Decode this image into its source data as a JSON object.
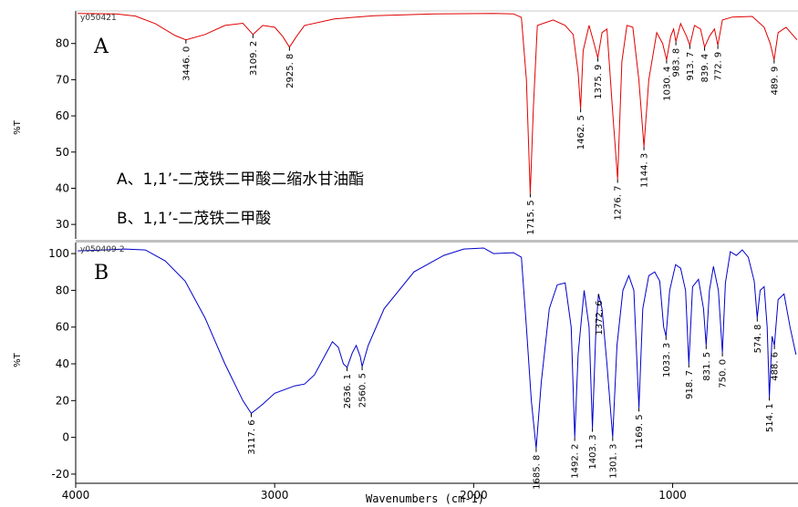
{
  "chart_data": [
    {
      "type": "line",
      "panel_label": "A",
      "spectrum_id": "y050421",
      "color": "#e00000",
      "ylabel": "%T",
      "xlabel": "Wavenumbers (cm-1)",
      "xlim": [
        4000,
        370
      ],
      "ylim": [
        26,
        89
      ],
      "yticks": [
        30,
        40,
        50,
        60,
        70,
        80
      ],
      "points": [
        [
          3990,
          88.3
        ],
        [
          3800,
          88.2
        ],
        [
          3700,
          87.6
        ],
        [
          3600,
          85.5
        ],
        [
          3500,
          82.2
        ],
        [
          3446.0,
          81.0
        ],
        [
          3350,
          82.5
        ],
        [
          3250,
          85.0
        ],
        [
          3160,
          85.6
        ],
        [
          3109.2,
          82.5
        ],
        [
          3060,
          85.0
        ],
        [
          3000,
          84.5
        ],
        [
          2960,
          82.0
        ],
        [
          2925.8,
          79.0
        ],
        [
          2890,
          82.0
        ],
        [
          2850,
          85.0
        ],
        [
          2700,
          86.8
        ],
        [
          2500,
          87.7
        ],
        [
          2200,
          88.2
        ],
        [
          1900,
          88.3
        ],
        [
          1800,
          88.2
        ],
        [
          1760,
          87.2
        ],
        [
          1735,
          70.0
        ],
        [
          1715.5,
          38.5
        ],
        [
          1700,
          62.0
        ],
        [
          1680,
          85.0
        ],
        [
          1600,
          86.5
        ],
        [
          1540,
          85.0
        ],
        [
          1500,
          82.5
        ],
        [
          1475,
          72.0
        ],
        [
          1462.5,
          62.0
        ],
        [
          1450,
          78.0
        ],
        [
          1420,
          85.0
        ],
        [
          1395,
          80.0
        ],
        [
          1375.9,
          76.0
        ],
        [
          1355,
          83.0
        ],
        [
          1330,
          84.0
        ],
        [
          1300,
          60.0
        ],
        [
          1276.7,
          42.5
        ],
        [
          1255,
          75.0
        ],
        [
          1230,
          85.0
        ],
        [
          1200,
          84.5
        ],
        [
          1170,
          70.0
        ],
        [
          1144.3,
          51.5
        ],
        [
          1120,
          70.0
        ],
        [
          1080,
          83.0
        ],
        [
          1050,
          80.0
        ],
        [
          1030.4,
          75.5
        ],
        [
          1010,
          82.0
        ],
        [
          995,
          84.0
        ],
        [
          983.8,
          80.5
        ],
        [
          960,
          85.5
        ],
        [
          930,
          82.0
        ],
        [
          913.7,
          79.5
        ],
        [
          890,
          85.0
        ],
        [
          860,
          84.0
        ],
        [
          839.4,
          79.0
        ],
        [
          815,
          82.0
        ],
        [
          790,
          84.0
        ],
        [
          772.9,
          79.5
        ],
        [
          750,
          86.5
        ],
        [
          700,
          87.3
        ],
        [
          600,
          87.5
        ],
        [
          540,
          84.5
        ],
        [
          510,
          80.0
        ],
        [
          489.9,
          75.5
        ],
        [
          470,
          83.0
        ],
        [
          430,
          84.5
        ],
        [
          375,
          81.0
        ]
      ],
      "peak_labels": [
        {
          "x": 3446.0,
          "y": 81.0,
          "label": "3446. 0"
        },
        {
          "x": 3109.2,
          "y": 82.5,
          "label": "3109. 2"
        },
        {
          "x": 2925.8,
          "y": 79.0,
          "label": "2925. 8"
        },
        {
          "x": 1715.5,
          "y": 38.5,
          "label": "1715. 5"
        },
        {
          "x": 1462.5,
          "y": 62.0,
          "label": "1462. 5"
        },
        {
          "x": 1375.9,
          "y": 76.0,
          "label": "1375. 9"
        },
        {
          "x": 1276.7,
          "y": 42.5,
          "label": "1276. 7"
        },
        {
          "x": 1144.3,
          "y": 51.5,
          "label": "1144. 3"
        },
        {
          "x": 1030.4,
          "y": 75.5,
          "label": "1030. 4"
        },
        {
          "x": 983.8,
          "y": 80.5,
          "label": "983. 8"
        },
        {
          "x": 913.7,
          "y": 79.5,
          "label": "913. 7"
        },
        {
          "x": 839.4,
          "y": 79.0,
          "label": "839. 4"
        },
        {
          "x": 772.9,
          "y": 79.5,
          "label": "772. 9"
        },
        {
          "x": 489.9,
          "y": 75.5,
          "label": "489. 9"
        }
      ]
    },
    {
      "type": "line",
      "panel_label": "B",
      "spectrum_id": "y050409-2",
      "color": "#0000cc",
      "ylabel": "%T",
      "xlabel": "Wavenumbers (cm-1)",
      "xlim": [
        4000,
        370
      ],
      "ylim": [
        -25,
        106
      ],
      "yticks": [
        -20,
        0,
        20,
        40,
        60,
        80,
        100
      ],
      "points": [
        [
          3990,
          101.5
        ],
        [
          3900,
          101.8
        ],
        [
          3750,
          102.5
        ],
        [
          3650,
          102.0
        ],
        [
          3550,
          96.0
        ],
        [
          3450,
          85.0
        ],
        [
          3350,
          65.0
        ],
        [
          3250,
          40.0
        ],
        [
          3160,
          20.0
        ],
        [
          3117.6,
          13.0
        ],
        [
          3060,
          18.0
        ],
        [
          3000,
          24.0
        ],
        [
          2900,
          28.0
        ],
        [
          2850,
          29.0
        ],
        [
          2800,
          34.0
        ],
        [
          2740,
          46.0
        ],
        [
          2710,
          52.0
        ],
        [
          2680,
          49.0
        ],
        [
          2655,
          40.0
        ],
        [
          2636.1,
          38.0
        ],
        [
          2610,
          46.0
        ],
        [
          2590,
          50.0
        ],
        [
          2570,
          44.0
        ],
        [
          2560.5,
          38.5
        ],
        [
          2530,
          50.0
        ],
        [
          2450,
          70.0
        ],
        [
          2300,
          90.0
        ],
        [
          2150,
          99.0
        ],
        [
          2050,
          102.5
        ],
        [
          1950,
          103.0
        ],
        [
          1900,
          100.0
        ],
        [
          1800,
          100.5
        ],
        [
          1760,
          98.0
        ],
        [
          1735,
          60.0
        ],
        [
          1710,
          20.0
        ],
        [
          1685.8,
          -6.0
        ],
        [
          1660,
          30.0
        ],
        [
          1620,
          70.0
        ],
        [
          1580,
          83.0
        ],
        [
          1540,
          84.0
        ],
        [
          1510,
          60.0
        ],
        [
          1492.2,
          0.0
        ],
        [
          1475,
          45.0
        ],
        [
          1445,
          80.0
        ],
        [
          1420,
          60.0
        ],
        [
          1403.3,
          5.0
        ],
        [
          1385,
          60.0
        ],
        [
          1372.6,
          78.0
        ],
        [
          1355,
          70.0
        ],
        [
          1330,
          40.0
        ],
        [
          1301.3,
          0.0
        ],
        [
          1280,
          50.0
        ],
        [
          1250,
          80.0
        ],
        [
          1220,
          88.0
        ],
        [
          1195,
          80.0
        ],
        [
          1169.5,
          16.0
        ],
        [
          1150,
          70.0
        ],
        [
          1120,
          88.0
        ],
        [
          1090,
          90.0
        ],
        [
          1065,
          85.0
        ],
        [
          1045,
          60.0
        ],
        [
          1033.3,
          55.0
        ],
        [
          1015,
          80.0
        ],
        [
          985,
          94.0
        ],
        [
          960,
          92.0
        ],
        [
          935,
          80.0
        ],
        [
          918.7,
          40.0
        ],
        [
          900,
          82.0
        ],
        [
          870,
          86.0
        ],
        [
          845,
          70.0
        ],
        [
          831.5,
          50.0
        ],
        [
          815,
          80.0
        ],
        [
          795,
          93.0
        ],
        [
          770,
          80.0
        ],
        [
          750.0,
          46.0
        ],
        [
          735,
          84.0
        ],
        [
          710,
          101.0
        ],
        [
          680,
          99.0
        ],
        [
          650,
          102.0
        ],
        [
          620,
          98.0
        ],
        [
          590,
          85.0
        ],
        [
          574.8,
          65.0
        ],
        [
          560,
          80.0
        ],
        [
          540,
          82.0
        ],
        [
          525,
          60.0
        ],
        [
          514.1,
          22.0
        ],
        [
          500,
          55.0
        ],
        [
          488.6,
          50.0
        ],
        [
          470,
          75.0
        ],
        [
          440,
          78.0
        ],
        [
          410,
          60.0
        ],
        [
          380,
          45.0
        ]
      ],
      "peak_labels": [
        {
          "x": 3117.6,
          "y": 13.0,
          "label": "3117. 6"
        },
        {
          "x": 2636.1,
          "y": 38.0,
          "label": "2636. 1"
        },
        {
          "x": 2560.5,
          "y": 38.5,
          "label": "2560. 5"
        },
        {
          "x": 1685.8,
          "y": -6.0,
          "label": "1685. 8"
        },
        {
          "x": 1492.2,
          "y": 0.0,
          "label": "1492. 2"
        },
        {
          "x": 1403.3,
          "y": 5.0,
          "label": "1403. 3"
        },
        {
          "x": 1372.6,
          "y": 78.0,
          "label": "1372. 6"
        },
        {
          "x": 1301.3,
          "y": 0.0,
          "label": "1301. 3"
        },
        {
          "x": 1169.5,
          "y": 16.0,
          "label": "1169. 5"
        },
        {
          "x": 1033.3,
          "y": 55.0,
          "label": "1033. 3"
        },
        {
          "x": 918.7,
          "y": 40.0,
          "label": "918. 7"
        },
        {
          "x": 831.5,
          "y": 50.0,
          "label": "831. 5"
        },
        {
          "x": 750.0,
          "y": 46.0,
          "label": "750. 0"
        },
        {
          "x": 574.8,
          "y": 65.0,
          "label": "574. 8"
        },
        {
          "x": 514.1,
          "y": 22.0,
          "label": "514. 1"
        },
        {
          "x": 488.6,
          "y": 50.0,
          "label": "488. 6"
        }
      ]
    }
  ],
  "x_axis": {
    "label": "Wavenumbers (cm-1)",
    "ticks": [
      4000,
      3000,
      2000,
      1000
    ]
  },
  "legend": {
    "line_a": "A、1,1’-二茂铁二甲酸二缩水甘油酯",
    "line_b": "B、1,1’-二茂铁二甲酸"
  }
}
